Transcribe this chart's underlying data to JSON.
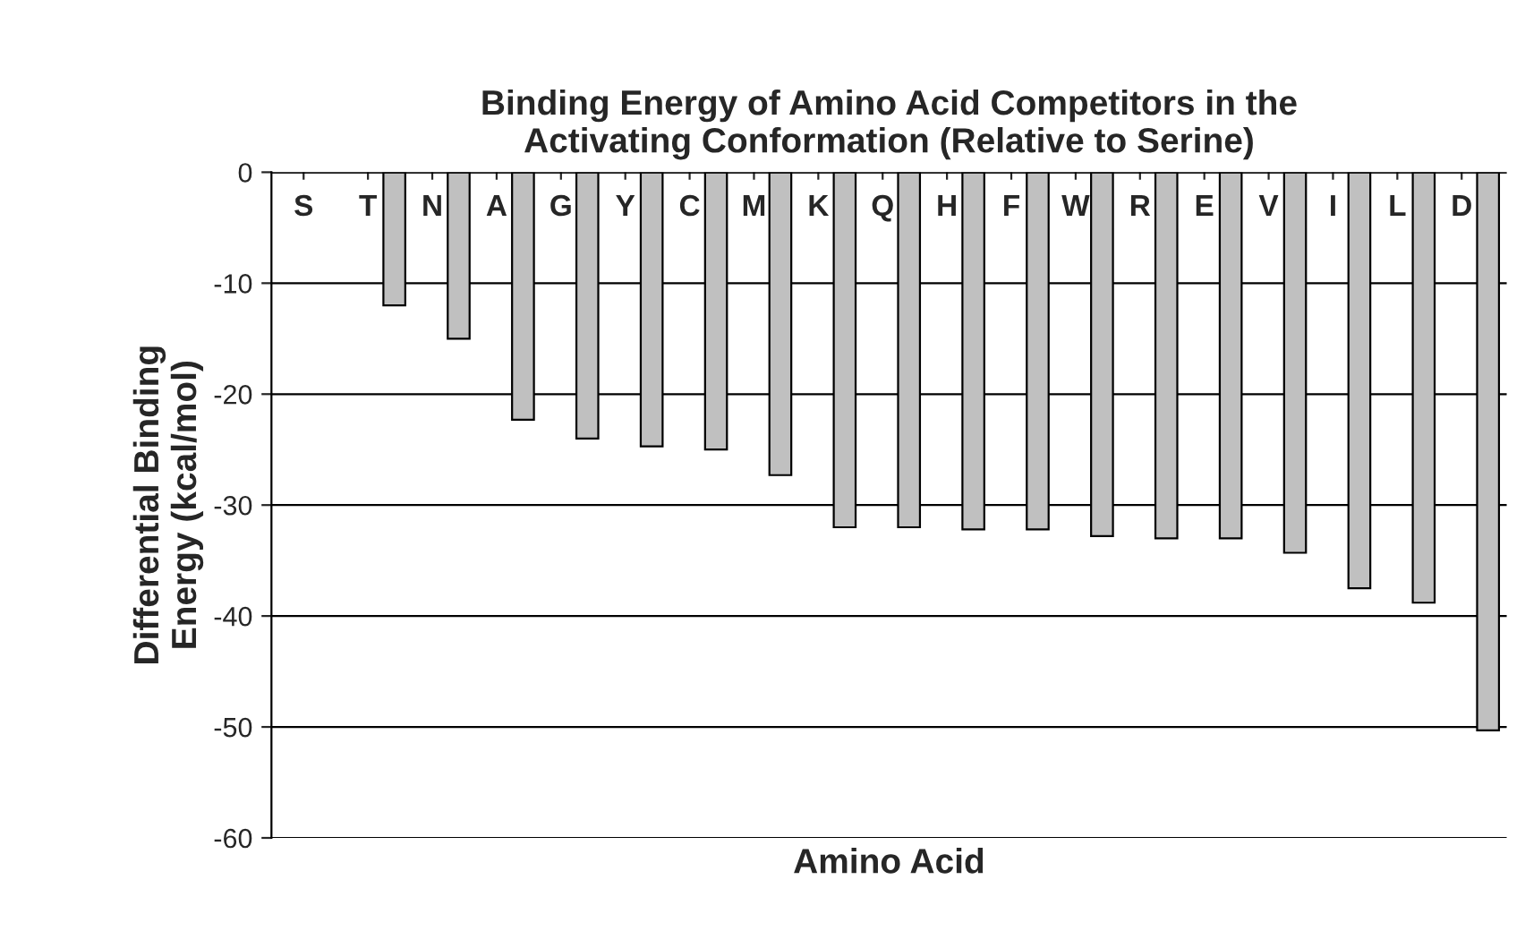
{
  "chart_data": {
    "type": "bar",
    "title": "Binding Energy of Amino Acid Competitors in the\nActivating Conformation (Relative to Serine)",
    "xlabel": "Amino Acid",
    "ylabel": "Differential Binding\nEnergy (kcal/mol)",
    "categories": [
      "S",
      "T",
      "N",
      "A",
      "G",
      "Y",
      "C",
      "M",
      "K",
      "Q",
      "H",
      "F",
      "W",
      "R",
      "E",
      "V",
      "I",
      "L",
      "D"
    ],
    "values": [
      0,
      -12,
      -15,
      -22.3,
      -24,
      -24.7,
      -25,
      -27.3,
      -32,
      -32,
      -32.2,
      -32.2,
      -32.8,
      -33,
      -33,
      -34.3,
      -37.5,
      -38.8,
      -50.3
    ],
    "color": "#c0c0c0",
    "ylim": [
      -60,
      0
    ],
    "yticks": [
      -60,
      -50,
      -40,
      -30,
      -20,
      -10,
      0
    ],
    "grid": "y"
  }
}
